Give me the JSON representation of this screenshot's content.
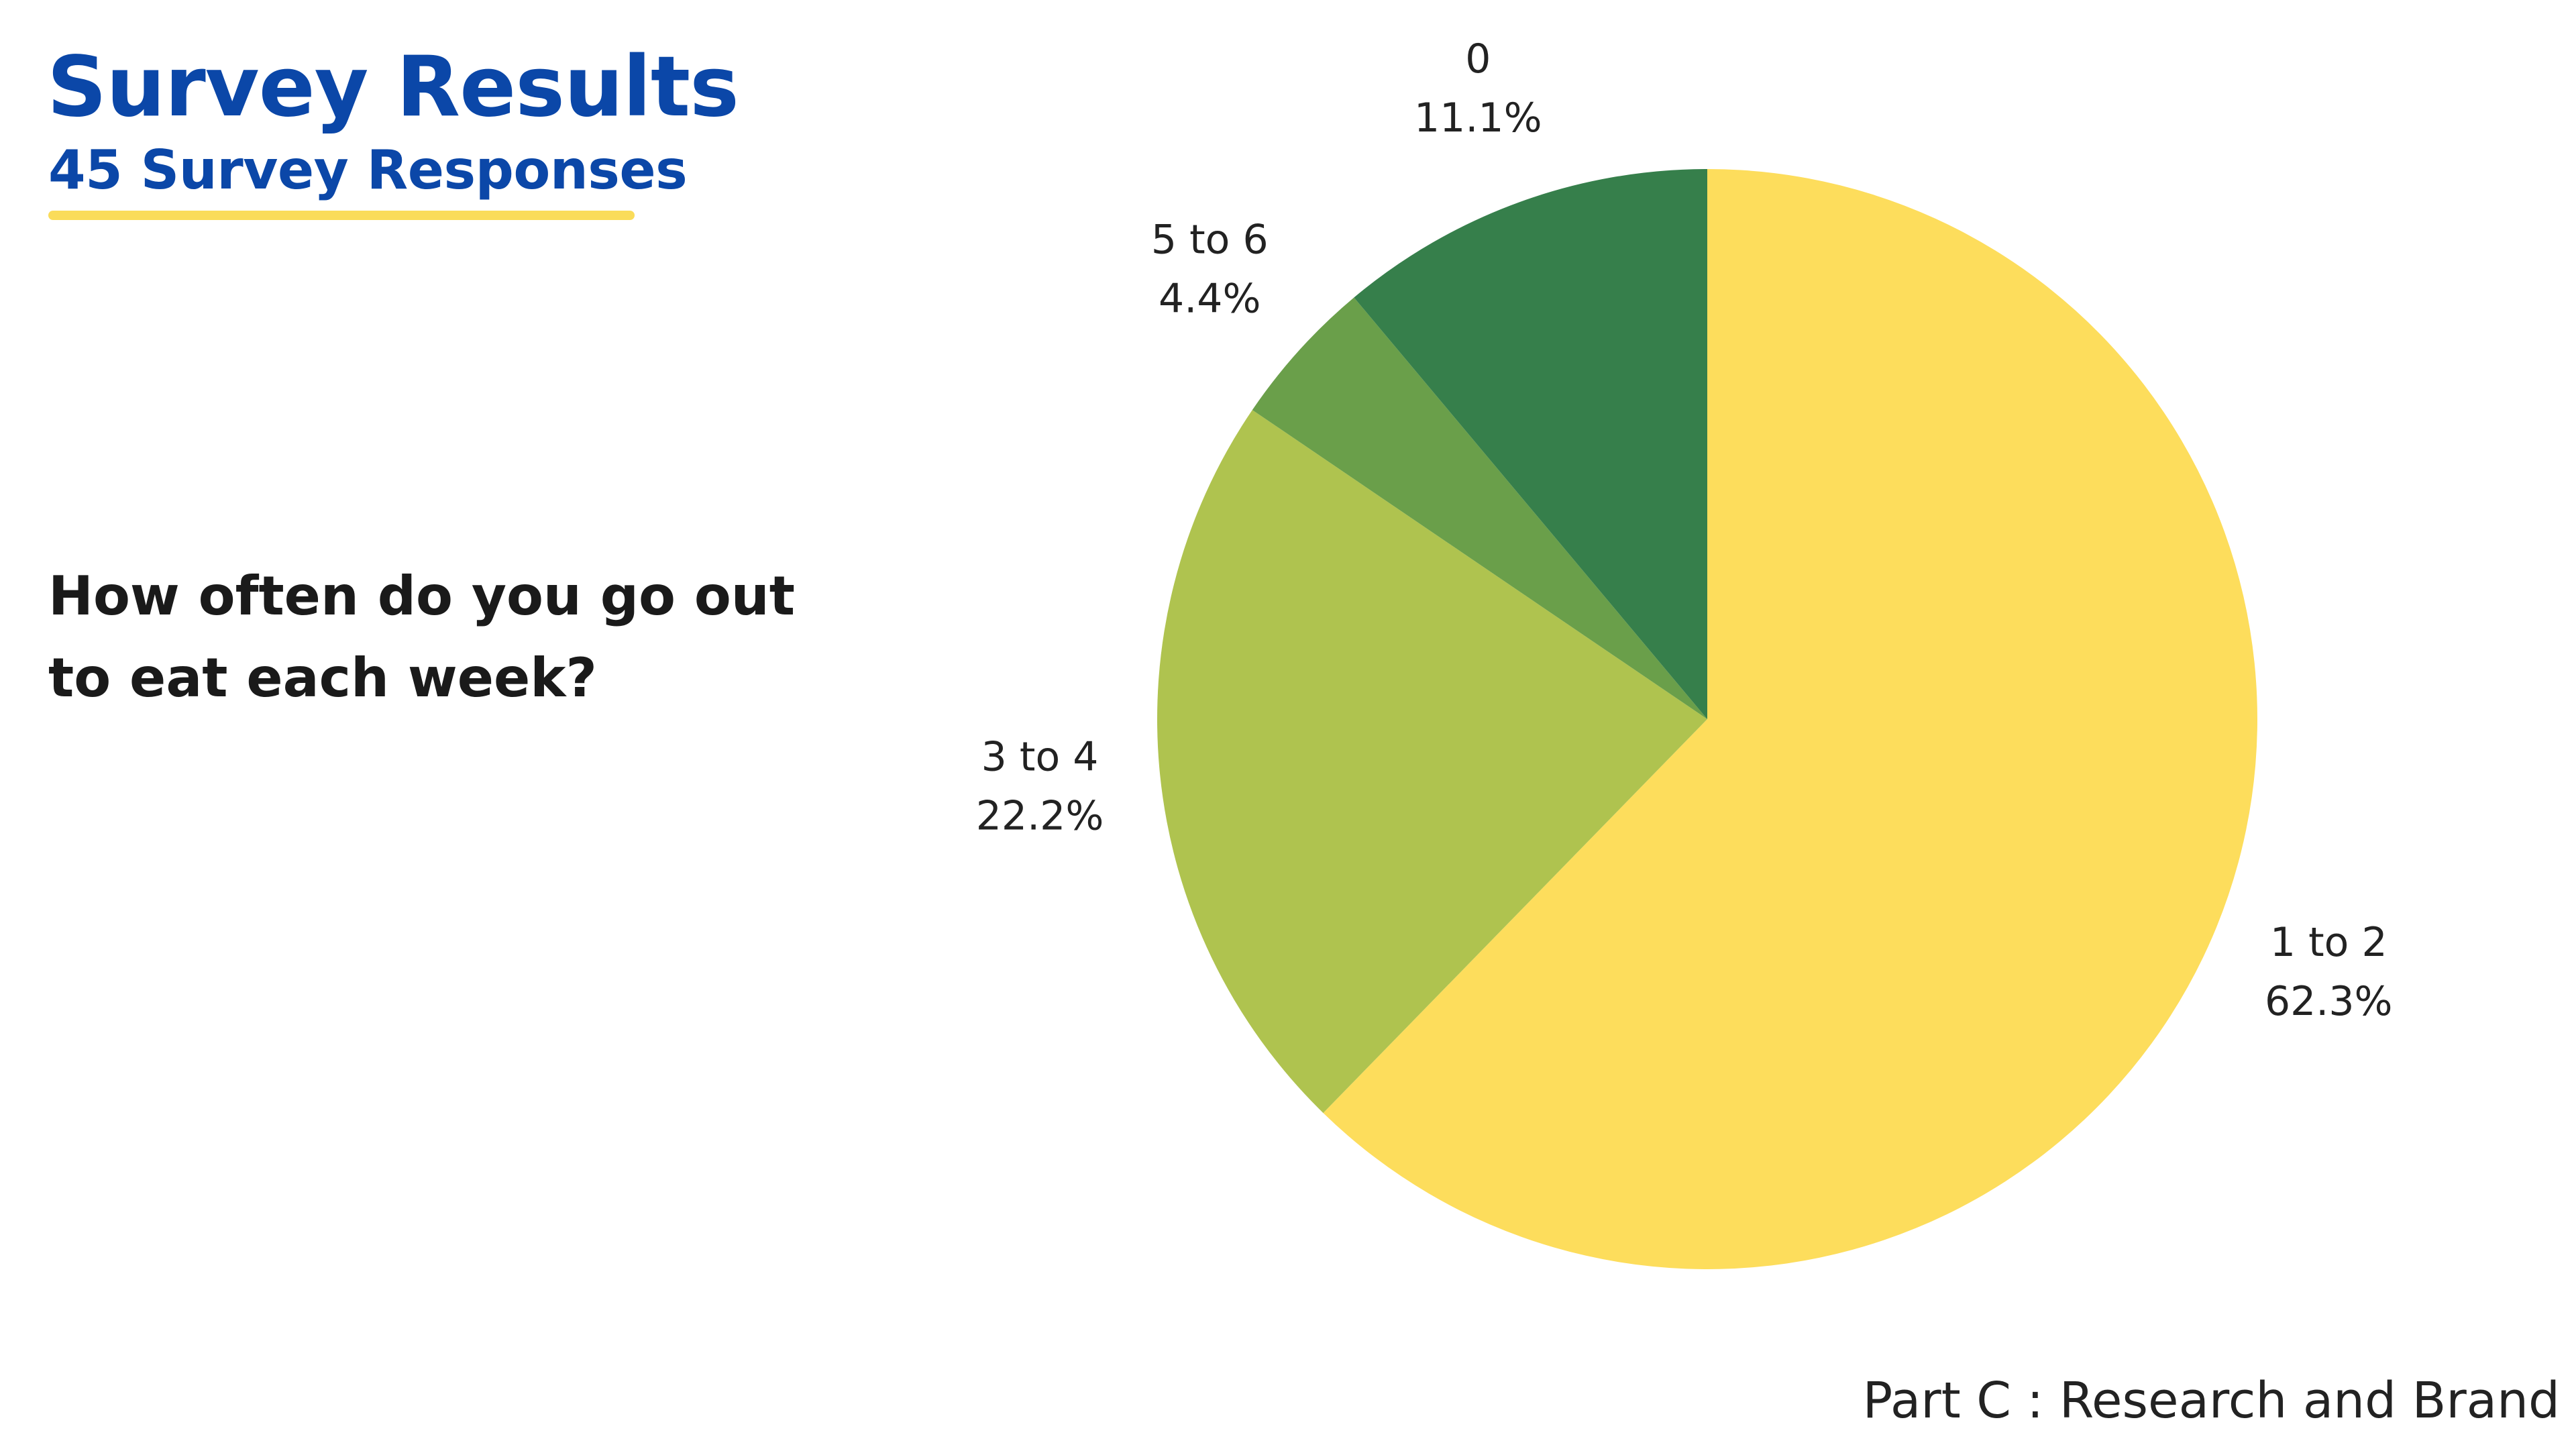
{
  "header": {
    "title": "Survey Results",
    "subtitle": "45 Survey Responses"
  },
  "question": {
    "line1": "How often do you go out",
    "line2": "to eat each week?"
  },
  "footer": "Part C : Research and Brand",
  "colors": {
    "title": "#0b47a8",
    "underline": "#fadc5a",
    "text": "#1a1a1a"
  },
  "chart_data": {
    "type": "pie",
    "start_angle_deg": 0,
    "direction": "clockwise",
    "slices": [
      {
        "label": "1 to 2",
        "value": 62.3,
        "value_label": "62.3%",
        "color": "#fddd5c"
      },
      {
        "label": "3 to 4",
        "value": 22.2,
        "value_label": "22.2%",
        "color": "#afc34f"
      },
      {
        "label": "5 to 6",
        "value": 4.4,
        "value_label": "4.4%",
        "color": "#6a9f4a"
      },
      {
        "label": "0",
        "value": 11.1,
        "value_label": "11.1%",
        "color": "#367f4b"
      }
    ]
  }
}
